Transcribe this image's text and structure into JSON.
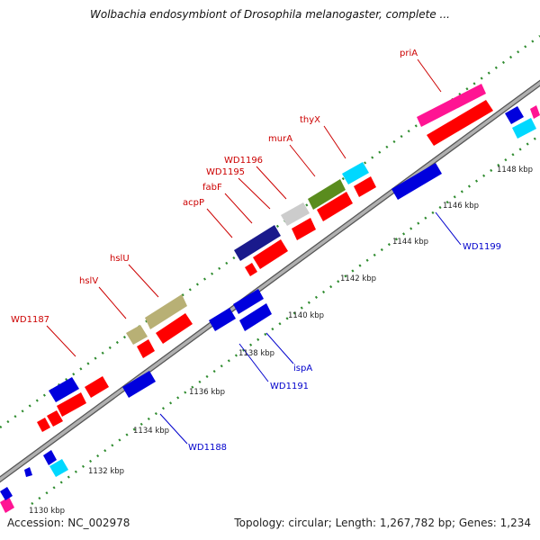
{
  "map": {
    "title": "Wolbachia endosymbiont of Drosophila melanogaster, complete ...",
    "accession": "Accession: NC_002978",
    "stats": "Topology: circular; Length: 1,267,782 bp; Genes: 1,234"
  },
  "colors": {
    "backbone": "#9a9a9a",
    "ruler": "#2e8b2e",
    "label_forward": "#cc0000",
    "label_reverse": "#0000cc",
    "feature_red": "#ff0000",
    "feature_blue": "#0000dd",
    "feature_navy": "#1a1a8c",
    "feature_pink": "#ff1493",
    "feature_cyan": "#00d8ff",
    "feature_olive": "#b8b075",
    "feature_green": "#5a8c1e",
    "feature_gray": "#cccccc"
  },
  "ruler_ticks": [
    "1130 kbp",
    "1132 kbp",
    "1134 kbp",
    "1136 kbp",
    "1138 kbp",
    "1140 kbp",
    "1142 kbp",
    "1144 kbp",
    "1146 kbp",
    "1148 kbp"
  ],
  "forward_labels": [
    "priA",
    "thyX",
    "murA",
    "WD1196",
    "WD1195",
    "fabF",
    "acpP",
    "hslU",
    "hslV",
    "WD1187"
  ],
  "reverse_labels": [
    "WD1199",
    "ispA",
    "WD1191",
    "WD1188"
  ]
}
